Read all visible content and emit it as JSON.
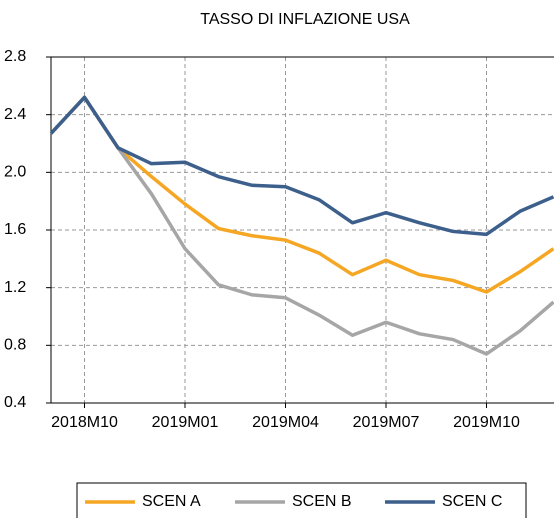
{
  "chart_data": {
    "type": "line",
    "title": "TASSO DI INFLAZIONE USA",
    "categories": [
      null,
      "2018M10",
      null,
      null,
      "2019M01",
      null,
      null,
      "2019M04",
      null,
      null,
      "2019M07",
      null,
      null,
      "2019M10",
      null,
      null
    ],
    "series": [
      {
        "name": "SCEN A",
        "color": "#f5a623",
        "values": [
          2.27,
          2.52,
          2.17,
          1.97,
          1.78,
          1.61,
          1.56,
          1.53,
          1.44,
          1.29,
          1.39,
          1.29,
          1.25,
          1.17,
          1.31,
          1.47
        ]
      },
      {
        "name": "SCEN B",
        "color": "#a6a6a6",
        "values": [
          2.27,
          2.52,
          2.17,
          1.85,
          1.47,
          1.22,
          1.15,
          1.13,
          1.01,
          0.87,
          0.96,
          0.88,
          0.84,
          0.74,
          0.9,
          1.1
        ]
      },
      {
        "name": "SCEN C",
        "color": "#3d5f8c",
        "values": [
          2.27,
          2.52,
          2.17,
          2.06,
          2.07,
          1.97,
          1.91,
          1.9,
          1.81,
          1.65,
          1.72,
          1.65,
          1.59,
          1.57,
          1.73,
          1.83
        ]
      }
    ],
    "ylim": [
      0.4,
      2.8
    ],
    "yticks": [
      2.8,
      2.4,
      {
        "value": 2.0,
        "label": "2.0"
      },
      1.6,
      1.2,
      0.8,
      0.4
    ],
    "grid": true
  }
}
